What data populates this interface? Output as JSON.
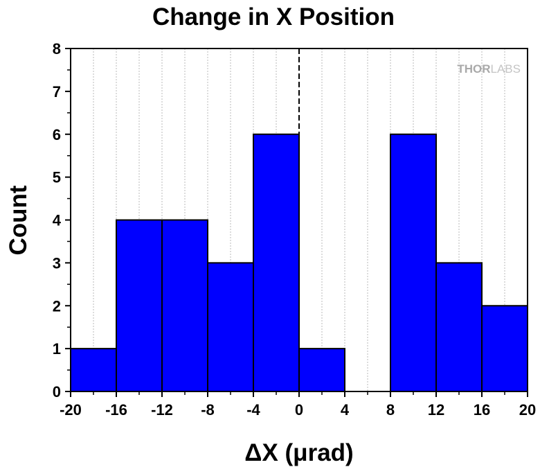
{
  "chart_data": {
    "type": "bar",
    "subtype": "histogram",
    "title": "Change in X Position",
    "xlabel": "ΔX (μrad)",
    "ylabel": "Count",
    "xlim": [
      -20,
      20
    ],
    "ylim": [
      0,
      8
    ],
    "x_ticks": [
      "-20",
      "-16",
      "-12",
      "-8",
      "-4",
      "0",
      "4",
      "8",
      "12",
      "16",
      "20"
    ],
    "y_ticks": [
      "0",
      "1",
      "2",
      "3",
      "4",
      "5",
      "6",
      "7",
      "8"
    ],
    "bins": [
      {
        "start": -20,
        "end": -16,
        "value": 1
      },
      {
        "start": -16,
        "end": -12,
        "value": 4
      },
      {
        "start": -12,
        "end": -8,
        "value": 4
      },
      {
        "start": -8,
        "end": -4,
        "value": 3
      },
      {
        "start": -4,
        "end": 0,
        "value": 6
      },
      {
        "start": 0,
        "end": 4,
        "value": 1
      },
      {
        "start": 4,
        "end": 8,
        "value": 0
      },
      {
        "start": 8,
        "end": 12,
        "value": 6
      },
      {
        "start": 12,
        "end": 16,
        "value": 3
      },
      {
        "start": 16,
        "end": 20,
        "value": 2
      }
    ],
    "bar_color": "#0000ff",
    "reference_line_x": 0,
    "grid": true,
    "legend": "none"
  },
  "watermark": {
    "part1": "THOR",
    "part2": "LABS"
  }
}
